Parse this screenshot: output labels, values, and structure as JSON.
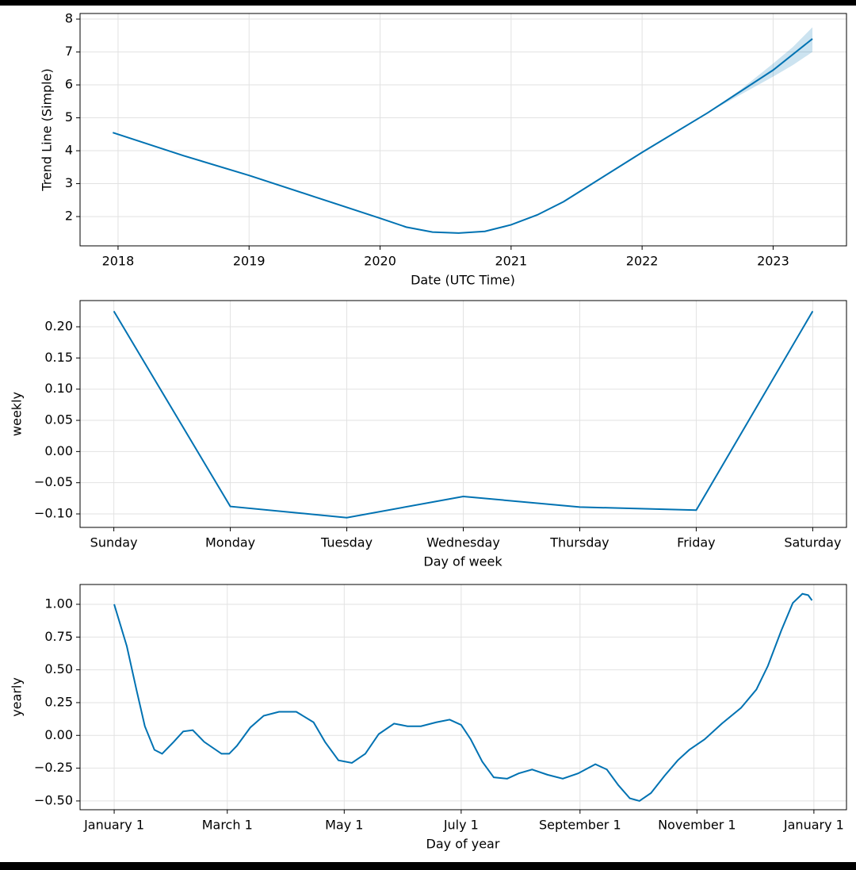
{
  "chart_data": [
    {
      "type": "line",
      "ylabel": "Trend Line (Simple)",
      "xlabel": "Date (UTC Time)",
      "x": [
        2017.96,
        2018.5,
        2019,
        2019.5,
        2020,
        2020.2,
        2020.4,
        2020.6,
        2020.8,
        2021,
        2021.2,
        2021.4,
        2021.6,
        2022,
        2022.5,
        2023,
        2023.3
      ],
      "series": [
        {
          "color": "#0072B2",
          "values": [
            4.55,
            3.85,
            3.25,
            2.6,
            1.95,
            1.68,
            1.53,
            1.5,
            1.55,
            1.75,
            2.05,
            2.45,
            2.95,
            3.95,
            5.15,
            6.45,
            7.4
          ]
        }
      ],
      "band": {
        "x": [
          2022.5,
          2022.75,
          2023,
          2023.15,
          2023.3
        ],
        "upper": [
          5.15,
          5.85,
          6.65,
          7.15,
          7.75
        ],
        "lower": [
          5.15,
          5.7,
          6.25,
          6.6,
          7.0
        ]
      },
      "xlim": [
        2017.71,
        2023.56
      ],
      "xticks": [
        2018,
        2019,
        2020,
        2021,
        2022,
        2023
      ],
      "ylim": [
        1.11,
        8.17
      ],
      "yticks": [
        2,
        3,
        4,
        5,
        6,
        7,
        8
      ],
      "grid": true
    },
    {
      "type": "line",
      "ylabel": "weekly",
      "xlabel": "Day of week",
      "categories": [
        "Sunday",
        "Monday",
        "Tuesday",
        "Wednesday",
        "Thursday",
        "Friday",
        "Saturday"
      ],
      "series": [
        {
          "color": "#0072B2",
          "values": [
            0.225,
            -0.088,
            -0.106,
            -0.072,
            -0.089,
            -0.094,
            0.225
          ]
        }
      ],
      "ylim": [
        -0.1216,
        0.242
      ],
      "yticks": [
        {
          "value": 0.2,
          "label": "0.20"
        },
        {
          "value": 0.15,
          "label": "0.15"
        },
        {
          "value": 0.1,
          "label": "0.10"
        },
        {
          "value": 0.05,
          "label": "0.05"
        },
        {
          "value": 0,
          "label": "0.00"
        },
        {
          "value": -0.05,
          "label": "−0.05"
        },
        {
          "value": -0.1,
          "label": "−0.10"
        }
      ],
      "grid": true
    },
    {
      "type": "line",
      "ylabel": "yearly",
      "xlabel": "Day of year",
      "x": [
        0,
        6.6,
        11.6,
        16,
        21,
        25,
        31,
        36,
        41,
        47,
        56,
        60,
        64,
        71,
        78,
        86,
        95,
        104,
        110,
        117,
        124,
        131,
        138,
        146,
        153,
        160,
        168,
        175,
        181,
        186,
        192,
        198,
        205,
        211,
        218,
        226,
        234,
        242,
        251,
        257,
        263,
        269,
        274,
        280,
        287,
        294,
        300,
        308,
        317,
        327,
        335,
        341,
        348,
        354,
        359,
        362,
        364
      ],
      "series": [
        {
          "color": "#0072B2",
          "values": [
            1.0,
            0.68,
            0.35,
            0.07,
            -0.11,
            -0.14,
            -0.05,
            0.03,
            0.04,
            -0.05,
            -0.14,
            -0.14,
            -0.08,
            0.06,
            0.15,
            0.18,
            0.18,
            0.1,
            -0.05,
            -0.19,
            -0.21,
            -0.14,
            0.01,
            0.09,
            0.07,
            0.07,
            0.1,
            0.12,
            0.08,
            -0.03,
            -0.2,
            -0.32,
            -0.33,
            -0.29,
            -0.26,
            -0.3,
            -0.33,
            -0.29,
            -0.22,
            -0.26,
            -0.38,
            -0.48,
            -0.5,
            -0.44,
            -0.31,
            -0.19,
            -0.11,
            -0.03,
            0.09,
            0.21,
            0.35,
            0.53,
            0.8,
            1.01,
            1.08,
            1.07,
            1.03
          ]
        }
      ],
      "xlim": [
        -17.8,
        382
      ],
      "xticks": [
        {
          "value": 0,
          "label": "January 1"
        },
        {
          "value": 59,
          "label": "March 1"
        },
        {
          "value": 120,
          "label": "May 1"
        },
        {
          "value": 181,
          "label": "July 1"
        },
        {
          "value": 243,
          "label": "September 1"
        },
        {
          "value": 304,
          "label": "November 1"
        },
        {
          "value": 365,
          "label": "January 1"
        }
      ],
      "ylim": [
        -0.567,
        1.151
      ],
      "yticks": [
        {
          "value": 1,
          "label": "1.00"
        },
        {
          "value": 0.75,
          "label": "0.75"
        },
        {
          "value": 0.5,
          "label": "0.50"
        },
        {
          "value": 0.25,
          "label": "0.25"
        },
        {
          "value": 0,
          "label": "0.00"
        },
        {
          "value": -0.25,
          "label": "−0.25"
        },
        {
          "value": -0.5,
          "label": "−0.50"
        }
      ],
      "grid": true
    }
  ]
}
